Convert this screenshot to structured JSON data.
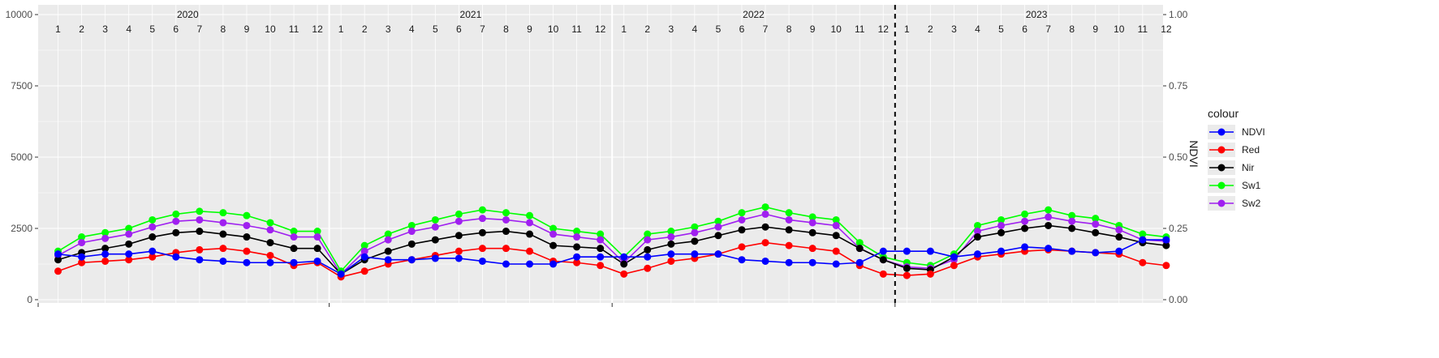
{
  "chart_data": {
    "type": "line",
    "title": "",
    "xlabel": "",
    "ylabel": "",
    "y2label": "NDVI",
    "ylim": [
      0,
      10000
    ],
    "y2lim": [
      0,
      1
    ],
    "yticks": [
      "0",
      "2500",
      "5000",
      "7500",
      "10000"
    ],
    "y2ticks": [
      "0.00",
      "0.25",
      "0.50",
      "0.75",
      "1.00"
    ],
    "years": [
      "2020",
      "2021",
      "2022",
      "2023"
    ],
    "months": [
      "1",
      "2",
      "3",
      "4",
      "5",
      "6",
      "7",
      "8",
      "9",
      "10",
      "11",
      "12"
    ],
    "vline_at": "2023-01-01",
    "grid": true,
    "legend": {
      "title": "colour",
      "position": "right"
    },
    "series_names": [
      "NDVI",
      "Red",
      "Nir",
      "Sw1",
      "Sw2"
    ],
    "colors": {
      "NDVI": "#0000ff",
      "Red": "#ff0000",
      "Nir": "#000000",
      "Sw1": "#00ff00",
      "Sw2": "#a020f0"
    },
    "x_months": [
      "2020-01",
      "2020-02",
      "2020-03",
      "2020-04",
      "2020-05",
      "2020-06",
      "2020-07",
      "2020-08",
      "2020-09",
      "2020-10",
      "2020-11",
      "2020-12",
      "2021-01",
      "2021-02",
      "2021-03",
      "2021-04",
      "2021-05",
      "2021-06",
      "2021-07",
      "2021-08",
      "2021-09",
      "2021-10",
      "2021-11",
      "2021-12",
      "2022-01",
      "2022-02",
      "2022-03",
      "2022-04",
      "2022-05",
      "2022-06",
      "2022-07",
      "2022-08",
      "2022-09",
      "2022-10",
      "2022-11",
      "2022-12",
      "2023-01",
      "2023-02",
      "2023-03",
      "2023-04",
      "2023-05",
      "2023-06",
      "2023-07",
      "2023-08",
      "2023-09",
      "2023-10",
      "2023-11",
      "2023-12"
    ],
    "series": [
      {
        "name": "Sw1",
        "values": [
          1700,
          2200,
          2350,
          2500,
          2800,
          3000,
          3100,
          3050,
          2950,
          2700,
          2400,
          2400,
          1000,
          1900,
          2300,
          2600,
          2800,
          3000,
          3150,
          3050,
          2950,
          2500,
          2400,
          2300,
          1500,
          2300,
          2400,
          2550,
          2750,
          3050,
          3250,
          3050,
          2900,
          2800,
          2000,
          1500,
          1300,
          1200,
          1600,
          2600,
          2800,
          3000,
          3150,
          2950,
          2850,
          2600,
          2300,
          2200
        ]
      },
      {
        "name": "Sw2",
        "values": [
          1550,
          2000,
          2150,
          2300,
          2550,
          2750,
          2800,
          2700,
          2600,
          2450,
          2200,
          2200,
          900,
          1700,
          2100,
          2400,
          2550,
          2750,
          2850,
          2800,
          2700,
          2300,
          2200,
          2100,
          1300,
          2100,
          2200,
          2350,
          2550,
          2800,
          3000,
          2800,
          2700,
          2600,
          1800,
          1400,
          1150,
          1100,
          1400,
          2400,
          2600,
          2750,
          2900,
          2750,
          2650,
          2450,
          2100,
          2050
        ]
      },
      {
        "name": "Nir",
        "values": [
          1400,
          1650,
          1800,
          1950,
          2200,
          2350,
          2400,
          2300,
          2200,
          2000,
          1800,
          1800,
          900,
          1400,
          1700,
          1950,
          2100,
          2250,
          2350,
          2400,
          2300,
          1900,
          1850,
          1800,
          1250,
          1750,
          1950,
          2050,
          2250,
          2450,
          2550,
          2450,
          2350,
          2250,
          1800,
          1400,
          1100,
          1050,
          1500,
          2200,
          2350,
          2500,
          2600,
          2500,
          2350,
          2200,
          2000,
          1900
        ]
      },
      {
        "name": "Red",
        "values": [
          1000,
          1300,
          1350,
          1400,
          1500,
          1650,
          1750,
          1800,
          1700,
          1550,
          1200,
          1300,
          800,
          1000,
          1250,
          1400,
          1550,
          1700,
          1800,
          1800,
          1700,
          1350,
          1300,
          1200,
          900,
          1100,
          1350,
          1450,
          1600,
          1850,
          2000,
          1900,
          1800,
          1700,
          1200,
          900,
          850,
          900,
          1200,
          1500,
          1600,
          1700,
          1750,
          1700,
          1650,
          1600,
          1300,
          1200
        ]
      },
      {
        "name": "NDVI",
        "values": [
          0.16,
          0.15,
          0.16,
          0.16,
          0.17,
          0.15,
          0.14,
          0.135,
          0.13,
          0.13,
          0.13,
          0.135,
          0.09,
          0.15,
          0.14,
          0.14,
          0.145,
          0.145,
          0.135,
          0.125,
          0.125,
          0.125,
          0.15,
          0.15,
          0.15,
          0.15,
          0.16,
          0.16,
          0.16,
          0.14,
          0.135,
          0.13,
          0.13,
          0.125,
          0.13,
          0.17,
          0.17,
          0.17,
          0.15,
          0.16,
          0.17,
          0.185,
          0.18,
          0.17,
          0.165,
          0.17,
          0.21,
          0.21
        ]
      }
    ]
  }
}
